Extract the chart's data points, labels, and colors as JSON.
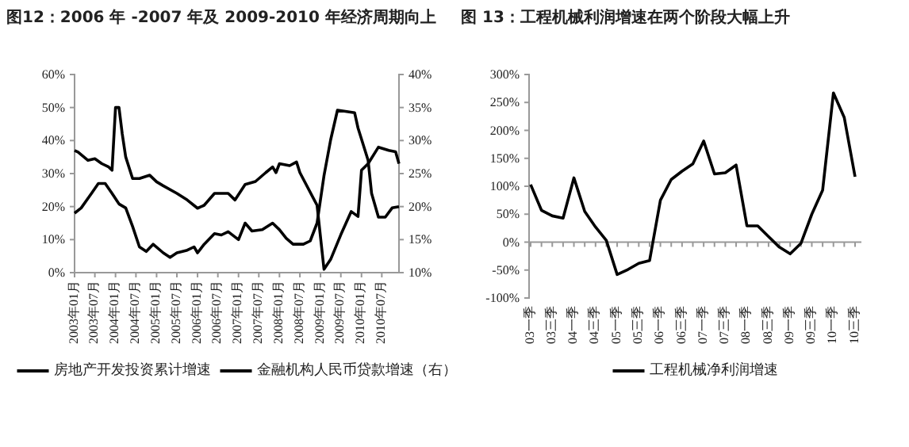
{
  "chart_data": [
    {
      "type": "line",
      "title": "图12：2006 年 -2007 年及 2009-2010 年经济周期向上",
      "x": [
        "2003-01",
        "2003-02",
        "2003-05",
        "2003-07",
        "2003-09",
        "2003-11",
        "2003-12",
        "2004-01",
        "2004-02",
        "2004-03",
        "2004-04",
        "2004-06",
        "2004-08",
        "2004-11",
        "2005-01",
        "2005-03",
        "2005-07",
        "2005-10",
        "2006-01",
        "2006-03",
        "2006-06",
        "2006-10",
        "2006-12",
        "2007-03",
        "2007-06",
        "2007-09",
        "2007-11",
        "2007-12",
        "2008-01",
        "2008-04",
        "2008-06",
        "2008-07",
        "2008-12",
        "2009-02",
        "2009-04",
        "2009-07",
        "2009-10",
        "2009-12",
        "2010-01",
        "2010-03",
        "2010-06",
        "2010-09",
        "2010-11",
        "2010-12"
      ],
      "series": [
        {
          "name": "房地产开发投资累计增速",
          "color": "#000000",
          "values": [
            37,
            36.5,
            34,
            34.5,
            33,
            32,
            31,
            50,
            50,
            42,
            35,
            28.5,
            28.5,
            29.5,
            27.5,
            26.3,
            24,
            22,
            19.5,
            20.4,
            24,
            24,
            22,
            26.7,
            27.6,
            30.3,
            32,
            30.3,
            33,
            32.4,
            33.5,
            30.3,
            20.4,
            1,
            4,
            11.5,
            18.5,
            17,
            31,
            33,
            38,
            37,
            36.6,
            33
          ]
        },
        {
          "name": "金融机构人民币贷款增速（右）",
          "color": "#000000",
          "axis": "y2",
          "x": [
            "2003-01",
            "2003-03",
            "2003-06",
            "2003-08",
            "2003-10",
            "2003-12",
            "2004-02",
            "2004-04",
            "2004-06",
            "2004-08",
            "2004-10",
            "2004-12",
            "2005-03",
            "2005-05",
            "2005-07",
            "2005-10",
            "2005-12",
            "2006-01",
            "2006-03",
            "2006-06",
            "2006-08",
            "2006-10",
            "2007-01",
            "2007-03",
            "2007-05",
            "2007-08",
            "2007-11",
            "2008-01",
            "2008-03",
            "2008-05",
            "2008-08",
            "2008-10",
            "2008-12",
            "2009-02",
            "2009-04",
            "2009-06",
            "2009-11",
            "2009-12",
            "2010-03",
            "2010-04",
            "2010-06",
            "2010-08",
            "2010-10",
            "2010-12"
          ],
          "values": [
            19,
            19.8,
            22,
            23.5,
            23.5,
            22,
            20.4,
            19.8,
            17,
            13.9,
            13.2,
            14.3,
            13,
            12.3,
            13,
            13.4,
            13.9,
            13,
            14.3,
            15.9,
            15.7,
            16.2,
            15,
            17.5,
            16.3,
            16.5,
            17.5,
            16.5,
            15.2,
            14.3,
            14.3,
            14.8,
            17.5,
            24.7,
            30.1,
            34.6,
            34.2,
            31.9,
            27,
            22,
            18.4,
            18.4,
            19.8,
            20
          ]
        }
      ],
      "xlim": [
        "2003-01",
        "2010-12"
      ],
      "xticks": [
        {
          "value": "2003-01",
          "label": "2003年01月"
        },
        {
          "value": "2003-07",
          "label": "2003年07月"
        },
        {
          "value": "2004-01",
          "label": "2004年01月"
        },
        {
          "value": "2004-07",
          "label": "2004年07月"
        },
        {
          "value": "2005-01",
          "label": "2005年01月"
        },
        {
          "value": "2005-07",
          "label": "2005年07月"
        },
        {
          "value": "2006-01",
          "label": "2006年01月"
        },
        {
          "value": "2006-07",
          "label": "2006年07月"
        },
        {
          "value": "2007-01",
          "label": "2007年01月"
        },
        {
          "value": "2007-07",
          "label": "2007年07月"
        },
        {
          "value": "2008-01",
          "label": "2008年01月"
        },
        {
          "value": "2008-07",
          "label": "2008年07月"
        },
        {
          "value": "2009-01",
          "label": "2009年01月"
        },
        {
          "value": "2009-07",
          "label": "2009年07月"
        },
        {
          "value": "2010-01",
          "label": "2010年01月"
        },
        {
          "value": "2010-07",
          "label": "2010年07月"
        }
      ],
      "ylim": [
        0,
        60
      ],
      "yticks": [
        {
          "value": 0,
          "label": "0%"
        },
        {
          "value": 10,
          "label": "10%"
        },
        {
          "value": 20,
          "label": "20%"
        },
        {
          "value": 30,
          "label": "30%"
        },
        {
          "value": 40,
          "label": "40%"
        },
        {
          "value": 50,
          "label": "50%"
        },
        {
          "value": 60,
          "label": "60%"
        }
      ],
      "y2lim": [
        10,
        40
      ],
      "y2ticks": [
        {
          "value": 10,
          "label": "10%"
        },
        {
          "value": 15,
          "label": "15%"
        },
        {
          "value": 20,
          "label": "20%"
        },
        {
          "value": 25,
          "label": "25%"
        },
        {
          "value": 30,
          "label": "30%"
        },
        {
          "value": 35,
          "label": "35%"
        },
        {
          "value": 40,
          "label": "40%"
        }
      ],
      "legend": "bottom"
    },
    {
      "type": "line",
      "title": "图 13：工程机械利润增速在两个阶段大幅上升",
      "categories": [
        "03一季",
        null,
        "03三季",
        null,
        "04一季",
        null,
        "04三季",
        null,
        "05一季",
        null,
        "05三季",
        null,
        "06一季",
        null,
        "06三季",
        null,
        "07一季",
        null,
        "07三季",
        null,
        "08一季",
        null,
        "08三季",
        null,
        "09一季",
        null,
        "09三季",
        null,
        "10一季",
        null,
        "10三季"
      ],
      "series": [
        {
          "name": "工程机械净利润增速",
          "color": "#000000",
          "values": [
            103,
            57,
            47,
            43,
            115,
            55,
            27,
            3,
            -58,
            -49,
            -38,
            -33,
            75,
            112,
            127,
            140,
            181,
            122,
            124,
            138,
            29,
            29,
            10,
            -9,
            -21,
            -2,
            50,
            93,
            267,
            223,
            117
          ]
        }
      ],
      "ylim": [
        -100,
        300
      ],
      "yticks": [
        {
          "value": -100,
          "label": "-100%"
        },
        {
          "value": -50,
          "label": "-50%"
        },
        {
          "value": 0,
          "label": "0%"
        },
        {
          "value": 50,
          "label": "50%"
        },
        {
          "value": 100,
          "label": "100%"
        },
        {
          "value": 150,
          "label": "150%"
        },
        {
          "value": 200,
          "label": "200%"
        },
        {
          "value": 250,
          "label": "250%"
        },
        {
          "value": 300,
          "label": "300%"
        }
      ],
      "legend": "bottom"
    }
  ]
}
